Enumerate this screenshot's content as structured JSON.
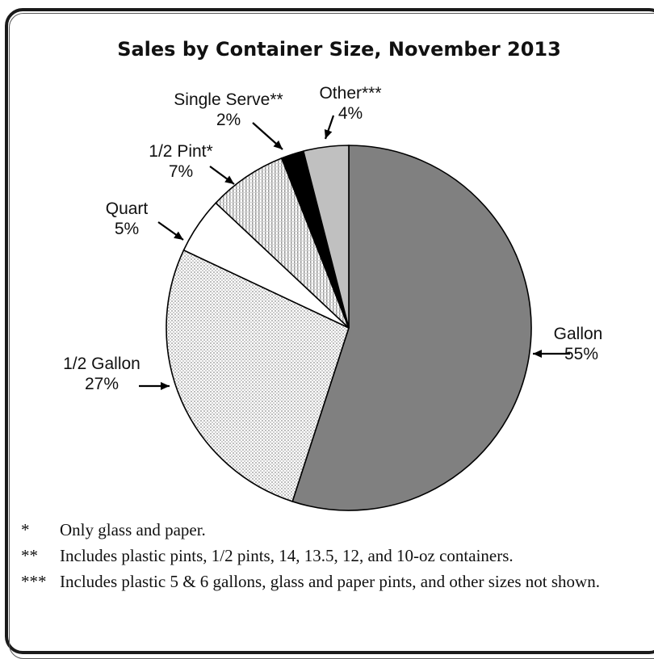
{
  "chart_data": {
    "type": "pie",
    "title": "Sales by Container Size, November 2013",
    "slices": [
      {
        "name": "Gallon",
        "label": "Gallon",
        "pct_label": "55%",
        "value": 55,
        "color": "#808080",
        "pattern": "solid"
      },
      {
        "name": "1/2 Gallon",
        "label": "1/2 Gallon",
        "pct_label": "27%",
        "value": 27,
        "color": "#e6e6e6",
        "pattern": "dots"
      },
      {
        "name": "Quart",
        "label": "Quart",
        "pct_label": "5%",
        "value": 5,
        "color": "#ffffff",
        "pattern": "solid"
      },
      {
        "name": "1/2 Pint*",
        "label": "1/2 Pint*",
        "pct_label": "7%",
        "value": 7,
        "color": "#dcdcdc",
        "pattern": "vlines"
      },
      {
        "name": "Single Serve**",
        "label": "Single Serve**",
        "pct_label": "2%",
        "value": 2,
        "color": "#000000",
        "pattern": "solid"
      },
      {
        "name": "Other***",
        "label": "Other***",
        "pct_label": "4%",
        "value": 4,
        "color": "#c0c0c0",
        "pattern": "solid"
      }
    ]
  },
  "footnotes": [
    {
      "marker": "*",
      "text": "Only glass and paper."
    },
    {
      "marker": "**",
      "text": "Includes plastic pints, 1/2 pints, 14, 13.5, 12, and 10-oz containers."
    },
    {
      "marker": "***",
      "text": "Includes plastic 5 & 6 gallons, glass and paper pints, and other sizes not shown."
    }
  ]
}
